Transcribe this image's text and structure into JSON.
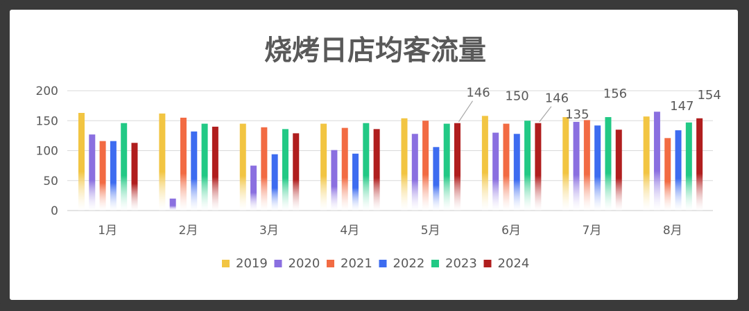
{
  "chart_data": {
    "type": "bar",
    "title": "烧烤日店均客流量",
    "categories": [
      "1月",
      "2月",
      "3月",
      "4月",
      "5月",
      "6月",
      "7月",
      "8月"
    ],
    "ylim": [
      0,
      200
    ],
    "yticks": [
      0,
      50,
      100,
      150,
      200
    ],
    "grid": true,
    "legend_position": "bottom",
    "series": [
      {
        "name": "2019",
        "color": "#F2C542",
        "values": [
          163,
          162,
          145,
          145,
          154,
          158,
          156,
          157
        ]
      },
      {
        "name": "2020",
        "color": "#8A6FE0",
        "values": [
          127,
          20,
          75,
          101,
          128,
          130,
          148,
          165
        ]
      },
      {
        "name": "2021",
        "color": "#F26B43",
        "values": [
          116,
          155,
          139,
          138,
          150,
          145,
          151,
          121
        ]
      },
      {
        "name": "2022",
        "color": "#3D6CF0",
        "values": [
          116,
          132,
          94,
          95,
          106,
          128,
          142,
          134
        ]
      },
      {
        "name": "2023",
        "color": "#22C985",
        "values": [
          146,
          145,
          136,
          146,
          145,
          150,
          156,
          147
        ]
      },
      {
        "name": "2024",
        "color": "#B01E1E",
        "values": [
          113,
          140,
          129,
          136,
          146,
          146,
          135,
          154
        ]
      }
    ],
    "annotations": [
      {
        "text": "146",
        "series": "2024",
        "category": "5月"
      },
      {
        "text": "150",
        "series": "2023",
        "category": "6月"
      },
      {
        "text": "146",
        "series": "2024",
        "category": "6月"
      },
      {
        "text": "156",
        "series": "2023",
        "category": "7月"
      },
      {
        "text": "135",
        "series": "2024",
        "category": "7月"
      },
      {
        "text": "147",
        "series": "2023",
        "category": "8月"
      },
      {
        "text": "154",
        "series": "2024",
        "category": "8月"
      }
    ]
  }
}
